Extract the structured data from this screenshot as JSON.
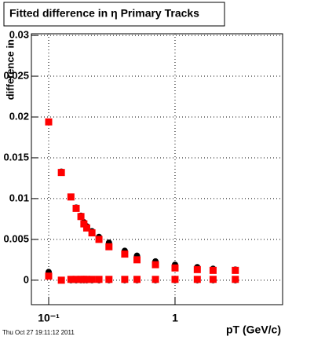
{
  "chart_data": {
    "type": "scatter",
    "title": "Fitted difference in η  Primary Tracks",
    "y_label": "difference in",
    "x_label": "pT (GeV/c)",
    "footer": "Thu Oct 27 19:11:12 2011",
    "log_x": true,
    "grid": true,
    "xlim": [
      0.073,
      7.1
    ],
    "ylim": [
      -0.003,
      0.0302
    ],
    "xticks": [
      {
        "value": 0.1,
        "label": "10⁻¹"
      },
      1
    ],
    "yticks": [
      0,
      0.005,
      0.01,
      0.015,
      0.02,
      0.025,
      0.03
    ],
    "x": [
      0.1,
      0.126,
      0.15,
      0.165,
      0.18,
      0.19,
      0.2,
      0.22,
      0.25,
      0.3,
      0.4,
      0.5,
      0.7,
      1.0,
      1.5,
      2.0,
      3.0
    ],
    "series": [
      {
        "name": "black-upper",
        "color": "#000000",
        "marker": "circle",
        "values": [
          0.0194,
          0.0133,
          0.0102,
          0.0089,
          0.0079,
          0.0071,
          0.0066,
          0.006,
          0.0053,
          0.0046,
          0.0036,
          0.003,
          0.0023,
          0.0019,
          0.0016,
          0.0014,
          0.0013
        ]
      },
      {
        "name": "red-upper",
        "color": "#ff0000",
        "marker": "square",
        "values": [
          0.0194,
          0.0132,
          0.0102,
          0.0088,
          0.0078,
          0.0069,
          0.0064,
          0.0058,
          0.005,
          0.0041,
          0.0032,
          0.0025,
          0.0019,
          0.0015,
          0.0013,
          0.0012,
          0.0012
        ]
      },
      {
        "name": "black-lower",
        "color": "#000000",
        "marker": "circle",
        "values": [
          0.001,
          0,
          0,
          0,
          0,
          0,
          0,
          0,
          0,
          0,
          0,
          0,
          0,
          0,
          0,
          0,
          0
        ]
      },
      {
        "name": "red-lower",
        "color": "#ff0000",
        "marker": "square",
        "values": [
          0.0005,
          0,
          0.0001,
          0.0001,
          0.0001,
          0.0001,
          0.0001,
          0.0001,
          0.0001,
          0.0001,
          0.0001,
          0.0001,
          0.0001,
          0.0001,
          0.0001,
          0.0001,
          0.0001
        ]
      }
    ]
  }
}
